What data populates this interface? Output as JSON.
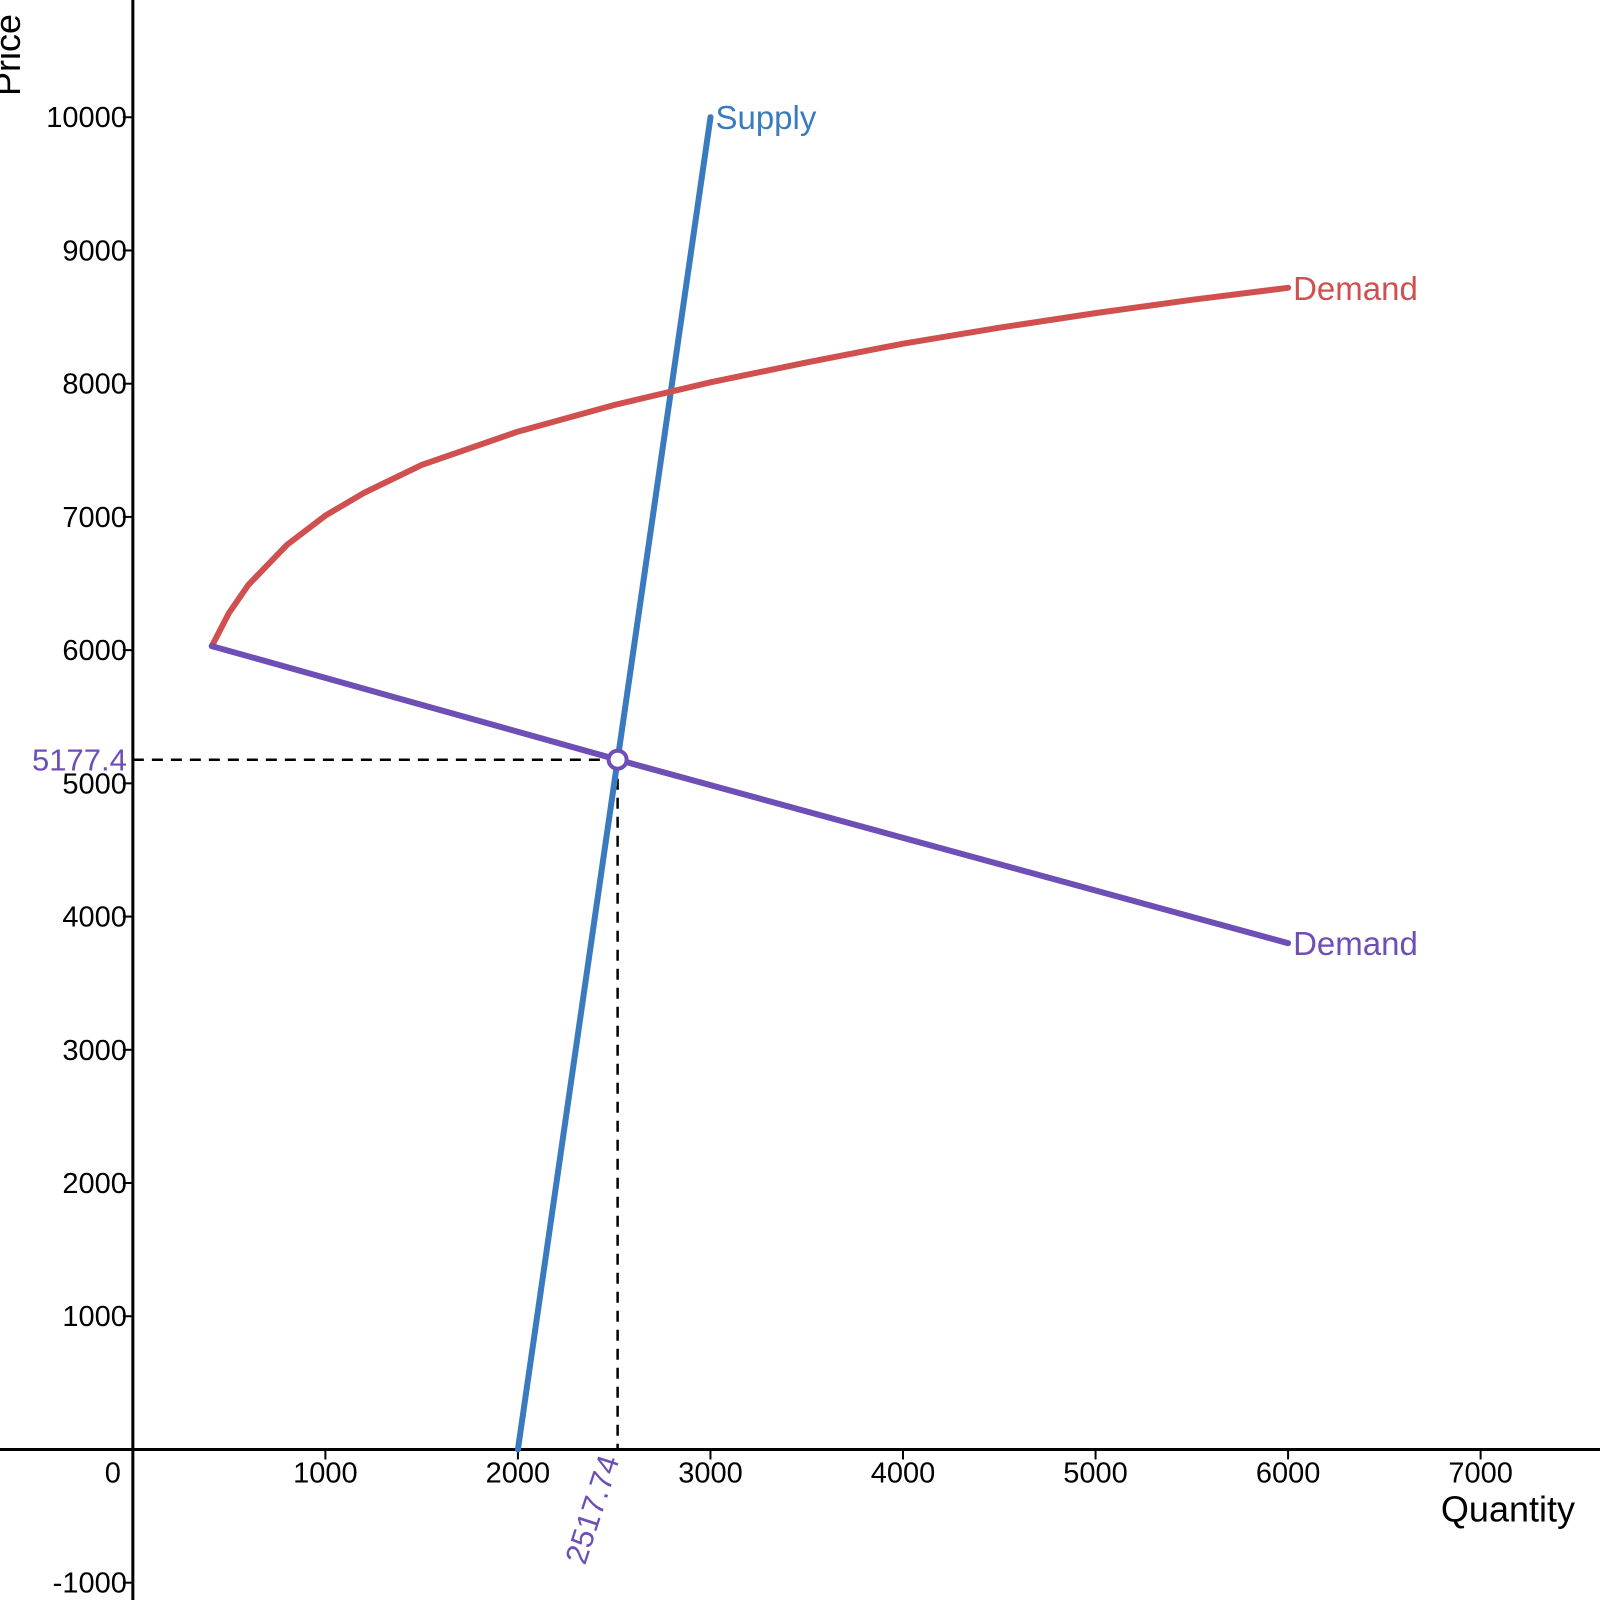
{
  "chart_data": {
    "type": "line",
    "title": "",
    "xlabel": "Quantity",
    "ylabel": "Price",
    "xlim": [
      -690,
      7620
    ],
    "ylim": [
      -1130,
      10880
    ],
    "grid": false,
    "x_ticks": [
      {
        "value": 0,
        "label": "0"
      },
      {
        "value": 1000,
        "label": "1000"
      },
      {
        "value": 2000,
        "label": "2000"
      },
      {
        "value": 3000,
        "label": "3000"
      },
      {
        "value": 4000,
        "label": "4000"
      },
      {
        "value": 5000,
        "label": "5000"
      },
      {
        "value": 6000,
        "label": "6000"
      },
      {
        "value": 7000,
        "label": "7000"
      }
    ],
    "y_ticks": [
      {
        "value": -1000,
        "label": "-1000"
      },
      {
        "value": 1000,
        "label": "1000"
      },
      {
        "value": 2000,
        "label": "2000"
      },
      {
        "value": 3000,
        "label": "3000"
      },
      {
        "value": 4000,
        "label": "4000"
      },
      {
        "value": 5000,
        "label": "5000"
      },
      {
        "value": 6000,
        "label": "6000"
      },
      {
        "value": 7000,
        "label": "7000"
      },
      {
        "value": 8000,
        "label": "8000"
      },
      {
        "value": 9000,
        "label": "9000"
      },
      {
        "value": 10000,
        "label": "10000"
      }
    ],
    "series": [
      {
        "name": "Supply",
        "color": "#3a7bbf",
        "x": [
          2000,
          3000
        ],
        "y": [
          0,
          10000
        ]
      },
      {
        "name": "Demand",
        "color": "#d05050",
        "x": [
          410,
          500,
          600,
          800,
          1000,
          1200,
          1500,
          2000,
          2500,
          3000,
          3500,
          4000,
          4500,
          5000,
          5500,
          6000
        ],
        "y": [
          6030,
          6280,
          6490,
          6790,
          7010,
          7180,
          7390,
          7640,
          7840,
          8010,
          8160,
          8300,
          8420,
          8530,
          8630,
          8720
        ]
      },
      {
        "name": "Demand",
        "color": "#6e4fb5",
        "x": [
          410,
          2517.74,
          6000
        ],
        "y": [
          6030,
          5177.4,
          3800
        ]
      }
    ],
    "equilibrium": {
      "x": 2517.74,
      "y": 5177.4,
      "x_label": "2517.74",
      "y_label": "5177.4",
      "color": "#6e4fb5"
    }
  }
}
